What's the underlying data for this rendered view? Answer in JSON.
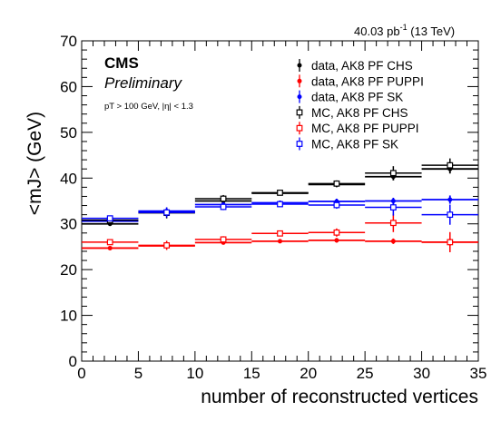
{
  "chart_data": {
    "type": "scatter",
    "header_lumi": "40.03 pb",
    "header_lumi_sup": "-1",
    "header_energy": " (13 TeV)",
    "cms_label": "CMS",
    "preliminary_label": "Preliminary",
    "selection_label": "pT > 100 GeV, |η| < 1.3",
    "ylabel": "<mJ> (GeV)",
    "xlabel": "number of reconstructed vertices",
    "xlim": [
      0,
      35
    ],
    "ylim": [
      0,
      70
    ],
    "x_ticks": [
      "0",
      "5",
      "10",
      "15",
      "20",
      "25",
      "30",
      "35"
    ],
    "y_ticks": [
      "0",
      "10",
      "20",
      "30",
      "40",
      "50",
      "60",
      "70"
    ],
    "bins": [
      [
        0,
        5
      ],
      [
        5,
        10
      ],
      [
        10,
        15
      ],
      [
        15,
        20
      ],
      [
        20,
        25
      ],
      [
        25,
        30
      ],
      [
        30,
        35
      ]
    ],
    "x_centers": [
      2.5,
      7.5,
      12.5,
      17.5,
      22.5,
      27.5,
      32.5
    ],
    "grid": false,
    "legend_position": "top-right",
    "series": [
      {
        "name": "data, AK8 PF CHS",
        "marker": "filled",
        "color": "#000000",
        "values": [
          30.0,
          32.7,
          35.0,
          36.7,
          38.6,
          40.3,
          42.0
        ],
        "errors": [
          0.4,
          0.5,
          0.5,
          0.5,
          0.6,
          0.8,
          1.0
        ]
      },
      {
        "name": "data, AK8 PF PUPPI",
        "marker": "filled",
        "color": "#ff0000",
        "values": [
          24.7,
          25.2,
          25.9,
          26.2,
          26.4,
          26.2,
          26.0
        ],
        "errors": [
          0.3,
          0.4,
          0.4,
          0.4,
          0.5,
          0.6,
          0.8
        ]
      },
      {
        "name": "data, AK8 PF SK",
        "marker": "filled",
        "color": "#0000ff",
        "values": [
          30.6,
          32.8,
          34.2,
          34.6,
          34.9,
          35.0,
          35.3
        ],
        "errors": [
          0.4,
          0.5,
          0.5,
          0.5,
          0.6,
          0.7,
          0.9
        ]
      },
      {
        "name": "MC, AK8 PF CHS",
        "marker": "open",
        "color": "#000000",
        "values": [
          30.8,
          32.4,
          35.5,
          36.8,
          38.8,
          41.1,
          42.8
        ],
        "errors": [
          0.8,
          1.2,
          0.8,
          0.6,
          0.7,
          1.5,
          1.5
        ]
      },
      {
        "name": "MC, AK8 PF PUPPI",
        "marker": "open",
        "color": "#ff0000",
        "values": [
          26.0,
          25.3,
          26.6,
          27.9,
          28.1,
          30.2,
          26.0
        ],
        "errors": [
          0.6,
          1.0,
          0.7,
          0.6,
          0.9,
          2.0,
          2.2
        ]
      },
      {
        "name": "MC, AK8 PF SK",
        "marker": "open",
        "color": "#0000ff",
        "values": [
          31.2,
          32.5,
          33.7,
          34.3,
          34.1,
          33.6,
          32.0
        ],
        "errors": [
          0.6,
          1.1,
          0.7,
          0.6,
          0.8,
          1.8,
          2.2
        ]
      }
    ]
  }
}
